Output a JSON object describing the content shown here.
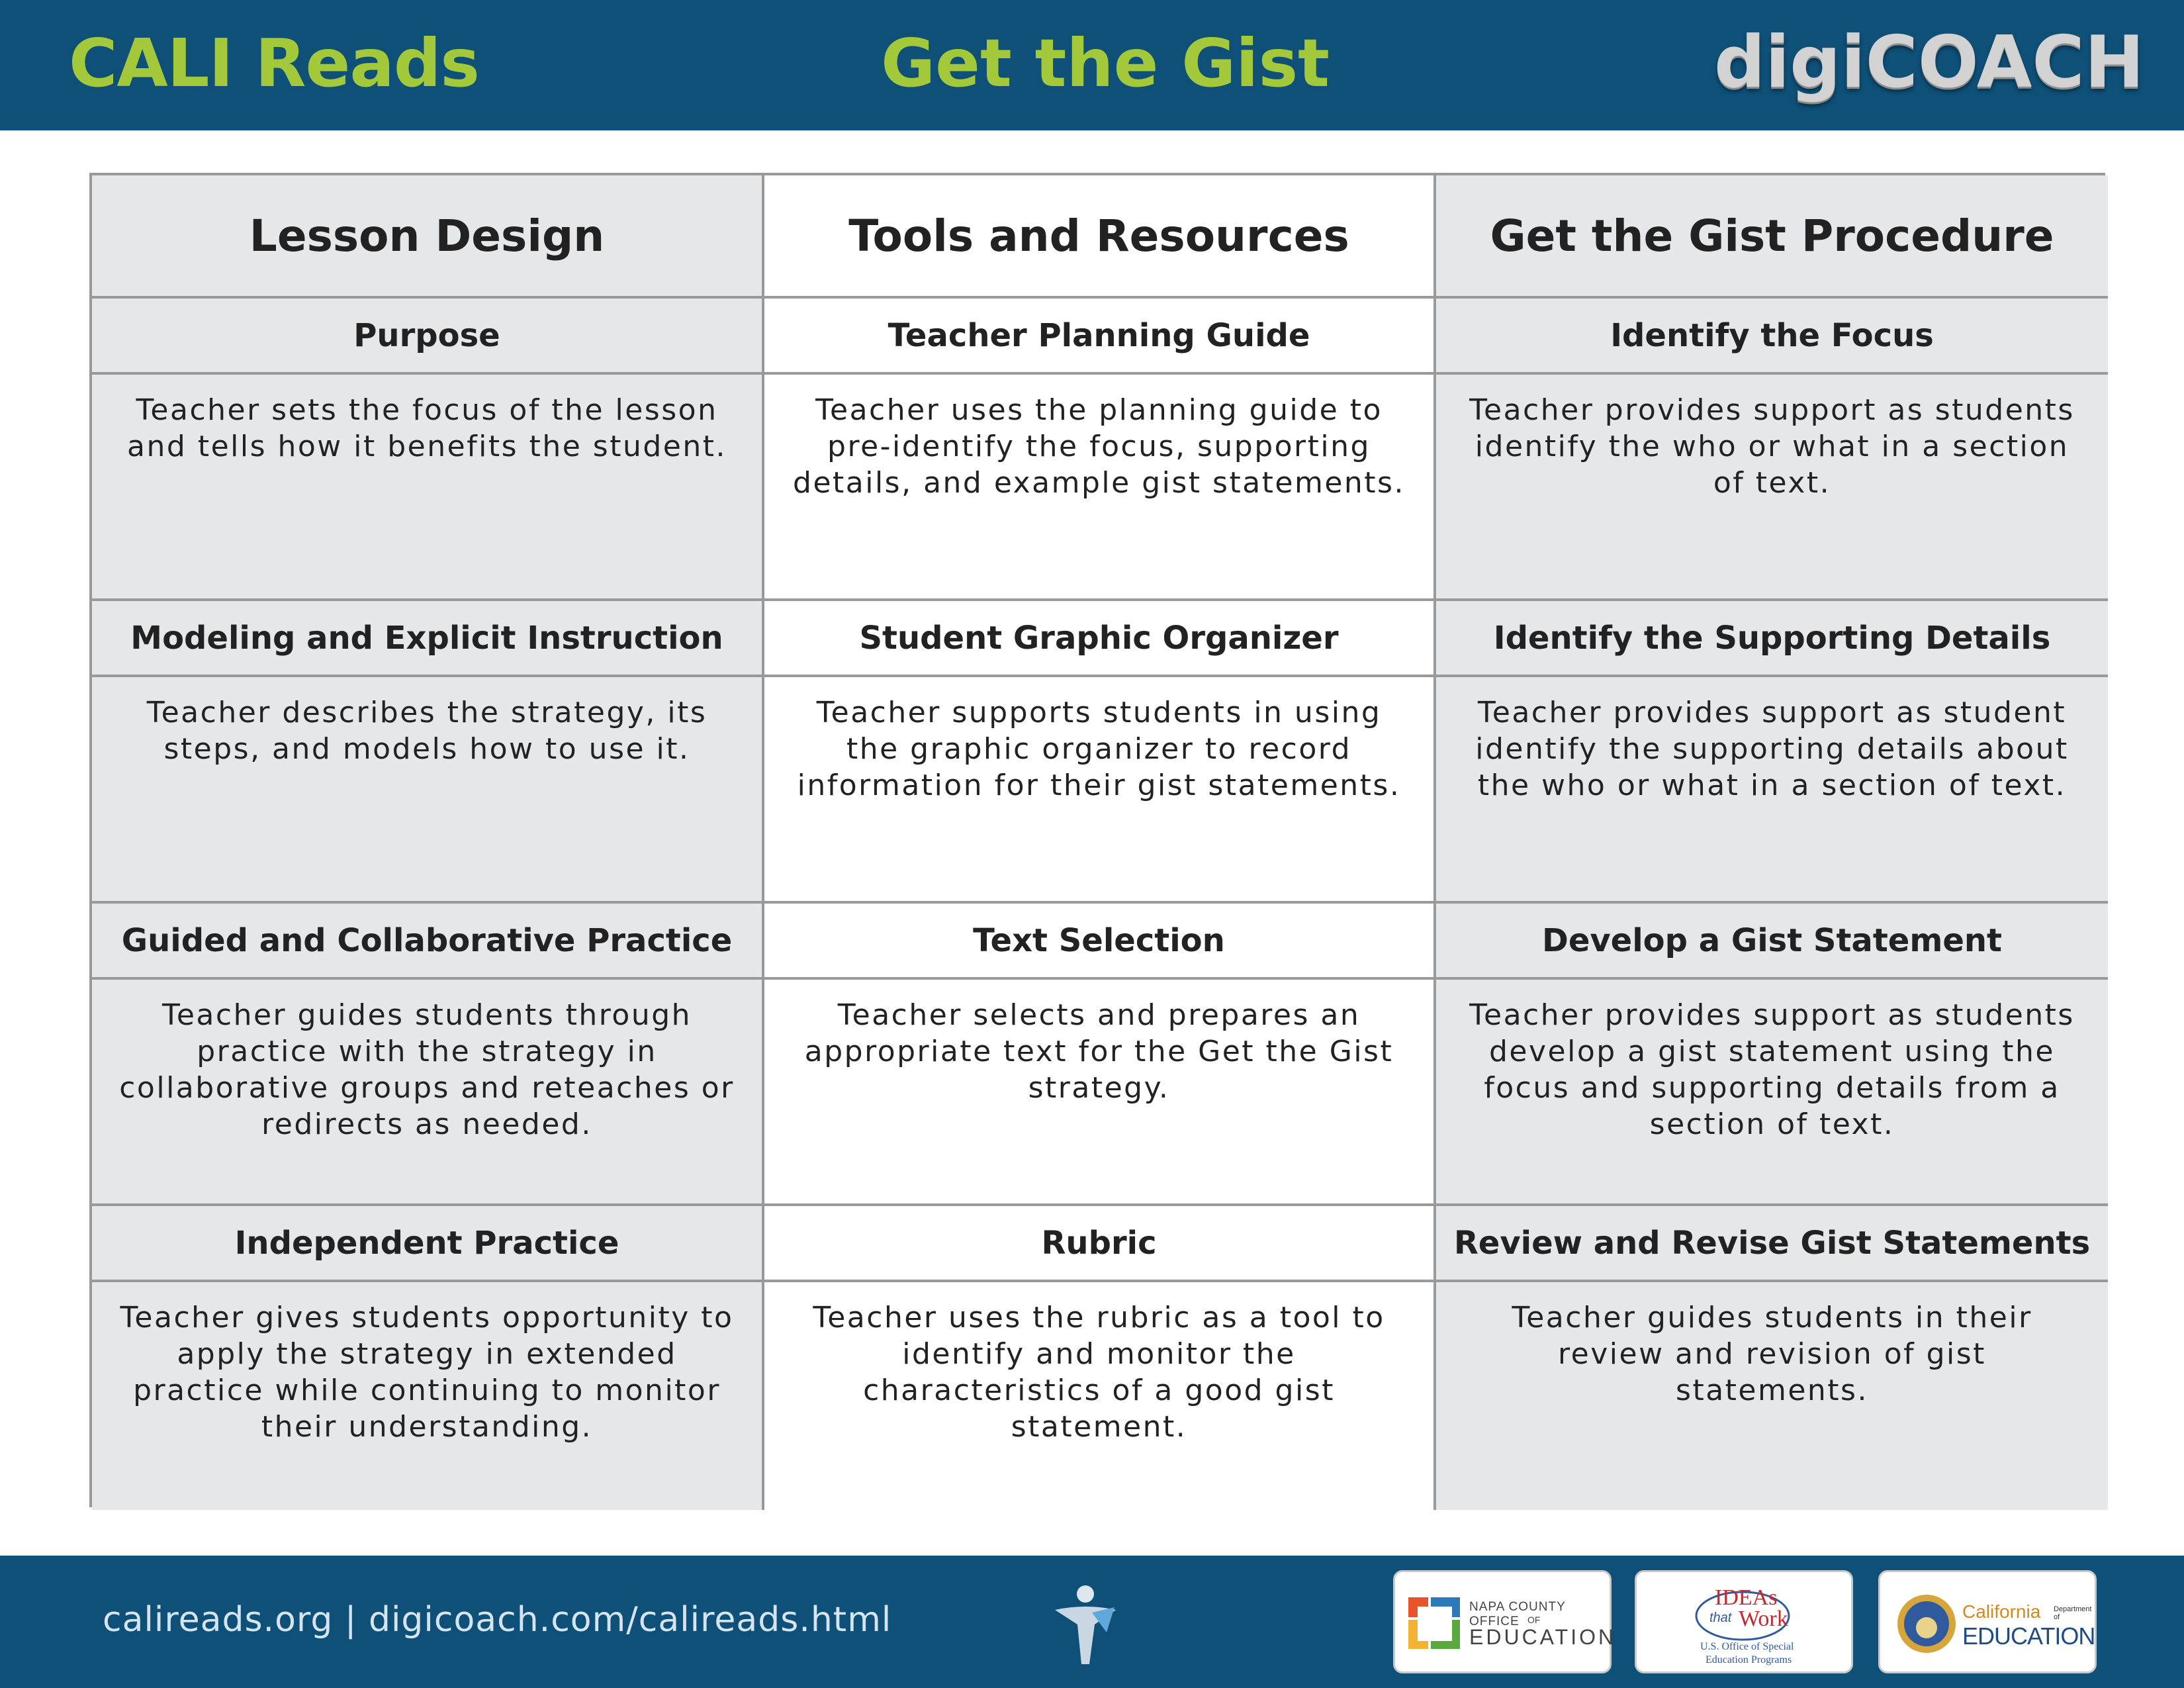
{
  "header": {
    "brand": "CALI Reads",
    "title": "Get the Gist",
    "logo": "digiCOACH"
  },
  "table": {
    "columns": [
      "Lesson Design",
      "Tools and Resources",
      "Get the Gist Procedure"
    ],
    "rows": [
      {
        "headings": [
          "Purpose",
          "Teacher Planning Guide",
          "Identify the Focus"
        ],
        "texts": [
          "Teacher sets the focus of the lesson and tells how it benefits the student.",
          "Teacher uses the planning guide to pre-identify the focus, supporting details, and example gist statements.",
          "Teacher provides support as students identify the who or what in a section of text."
        ]
      },
      {
        "headings": [
          "Modeling and Explicit Instruction",
          "Student Graphic Organizer",
          "Identify the Supporting Details"
        ],
        "texts": [
          "Teacher describes the strategy, its steps, and models how to use it.",
          "Teacher supports students in using the graphic organizer to record information for their gist statements.",
          "Teacher provides support as student identify the supporting details about the who or what in a section of text."
        ]
      },
      {
        "headings": [
          "Guided and Collaborative Practice",
          "Text Selection",
          "Develop a Gist Statement"
        ],
        "texts": [
          "Teacher guides students through practice with the strategy in collaborative groups and reteaches or redirects as needed.",
          "Teacher selects and prepares an appropriate text for the Get the Gist strategy.",
          "Teacher provides support as students develop a gist statement using the focus and supporting details from a section of text."
        ]
      },
      {
        "headings": [
          "Independent Practice",
          "Rubric",
          "Review and Revise Gist Statements"
        ],
        "texts": [
          "Teacher gives students opportunity to apply the strategy in extended practice while continuing to monitor their understanding.",
          "Teacher uses the rubric as a tool to identify and monitor the characteristics of a good gist statement.",
          "Teacher guides students in their review and revision of gist statements."
        ]
      }
    ]
  },
  "footer": {
    "links": "calireads.org | digicoach.com/calireads.html",
    "partners": {
      "napa_line1": "NAPA COUNTY OFFICE",
      "napa_line2": "OF",
      "napa_line3": "EDUCATION",
      "ideas_line1": "IDEAs",
      "ideas_line2": "that",
      "ideas_line3": "Work",
      "ideas_line4": "U.S. Office of Special",
      "ideas_line5": "Education Programs",
      "cde_line1": "California",
      "cde_line2": "Department of",
      "cde_line3": "EDUCATION"
    }
  },
  "colors": {
    "band": "#0e5078",
    "accent_green": "#a3c93a",
    "cell_shade": "#e6e7e9",
    "grid_line": "#999999"
  },
  "icons": {
    "emblem": "figure-emblem-icon",
    "napa": "napa-county-logo-icon",
    "ideas": "ideas-that-work-logo-icon",
    "cde": "california-seal-icon"
  }
}
